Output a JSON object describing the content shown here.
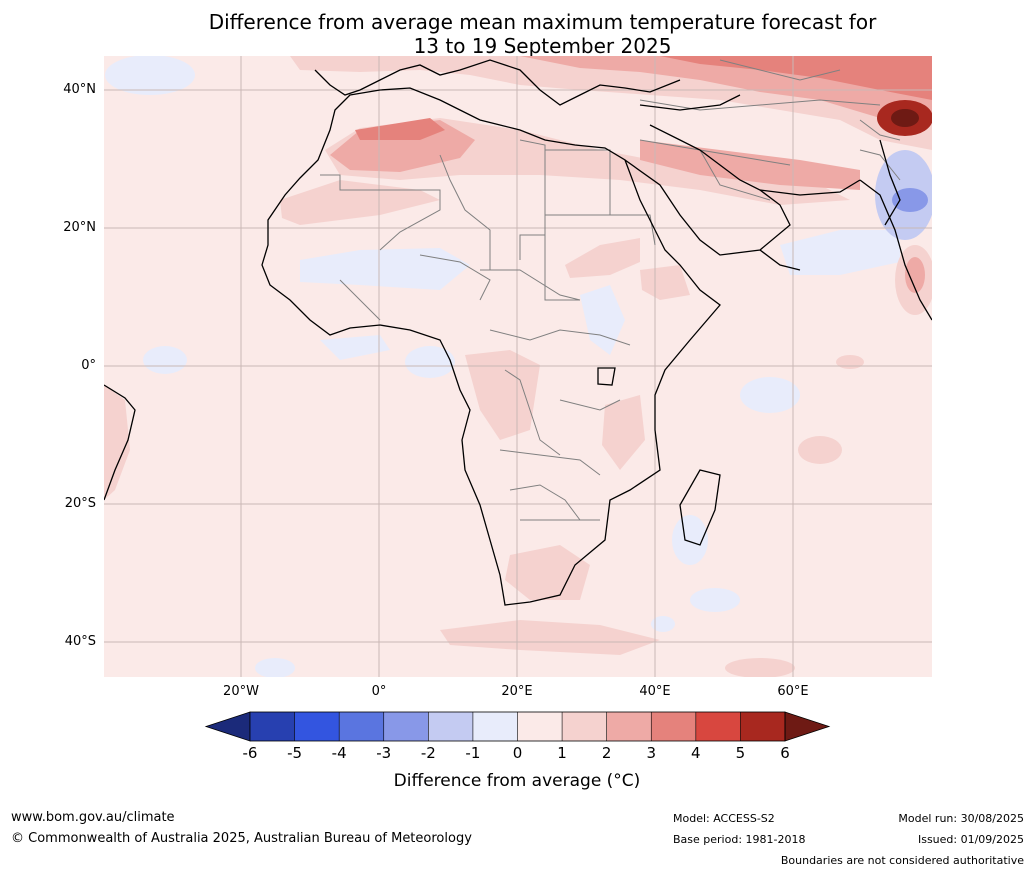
{
  "title": {
    "line1": "Difference from average mean maximum temperature forecast for",
    "line2": "13 to 19 September 2025"
  },
  "map": {
    "lat_labels": [
      "40°N",
      "20°N",
      "0°",
      "20°S",
      "40°S"
    ],
    "lon_labels": [
      "20°W",
      "0°",
      "20°E",
      "40°E",
      "60°E"
    ],
    "background_anomaly": 0.5,
    "colors": {
      "ocean_base": "#fbeae8",
      "grid": "#c9b8b6",
      "coast": "#000000",
      "border": "#808080"
    }
  },
  "colorbar": {
    "ticks": [
      "-6",
      "-5",
      "-4",
      "-3",
      "-2",
      "-1",
      "0",
      "1",
      "2",
      "3",
      "4",
      "5",
      "6"
    ],
    "colors": [
      "#1b2a7a",
      "#2740b0",
      "#3355e0",
      "#5a75e0",
      "#8898e8",
      "#c4cbf2",
      "#e8ecfb",
      "#fbeae8",
      "#f5d2cf",
      "#eeaaa6",
      "#e5827c",
      "#d8473f",
      "#a8281f",
      "#6e1a14"
    ],
    "label": "Difference from average (°C)"
  },
  "footer": {
    "website": "www.bom.gov.au/climate",
    "copyright": "© Commonwealth of Australia 2025, Australian Bureau of Meteorology",
    "model": "Model: ACCESS-S2",
    "base_period": "Base period: 1981-2018",
    "model_run": "Model run: 30/08/2025",
    "issued": "Issued: 01/09/2025",
    "disclaimer": "Boundaries are not considered authoritative"
  }
}
